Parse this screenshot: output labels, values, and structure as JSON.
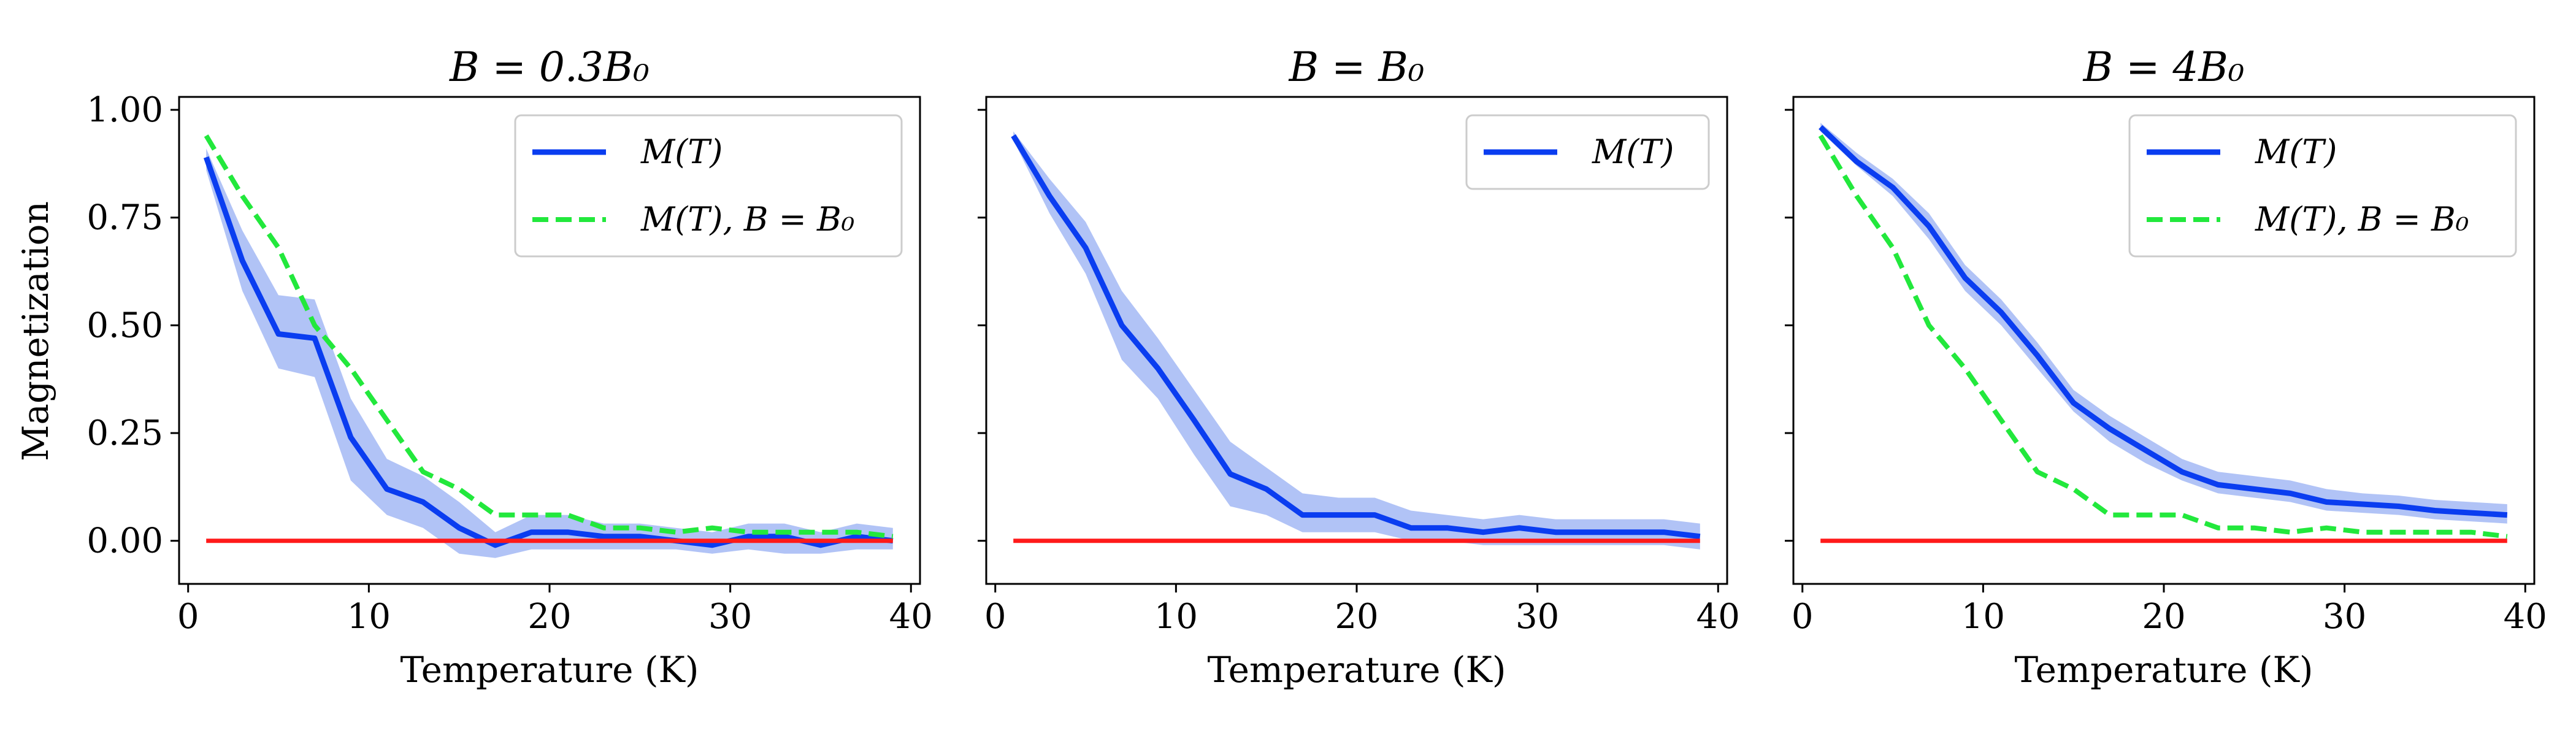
{
  "figure": {
    "ylabel": "Magnetization",
    "xlabel": "Temperature (K)"
  },
  "colors": {
    "main_line": "#0a3df0",
    "band_fill": "#a9bdf5",
    "reference_line": "#22e83c",
    "zero_line": "#ff1a1a"
  },
  "chart_data": [
    {
      "type": "line",
      "title": "B = 0.3B₀",
      "xlabel": "Temperature (K)",
      "ylabel": "Magnetization",
      "xlim": [
        -0.5,
        40.5
      ],
      "ylim": [
        -0.1,
        1.03
      ],
      "xticks": [
        0,
        10,
        20,
        30,
        40
      ],
      "yticks": [
        0.0,
        0.25,
        0.5,
        0.75,
        1.0
      ],
      "ytick_labels": [
        "0.00",
        "0.25",
        "0.50",
        "0.75",
        "1.00"
      ],
      "grid": false,
      "legend_position": "top-right",
      "x": [
        1,
        3,
        5,
        7,
        9,
        11,
        13,
        15,
        17,
        19,
        21,
        23,
        25,
        27,
        29,
        31,
        33,
        35,
        37,
        39
      ],
      "series": [
        {
          "name": "M(T)",
          "style": "solid",
          "color": "#0a3df0",
          "values": [
            0.89,
            0.65,
            0.48,
            0.47,
            0.24,
            0.12,
            0.09,
            0.03,
            -0.01,
            0.02,
            0.02,
            0.01,
            0.01,
            0.0,
            -0.01,
            0.01,
            0.01,
            -0.01,
            0.01,
            0.0
          ],
          "band_lower": [
            0.86,
            0.58,
            0.4,
            0.38,
            0.14,
            0.06,
            0.03,
            -0.03,
            -0.04,
            -0.02,
            -0.02,
            -0.02,
            -0.02,
            -0.02,
            -0.03,
            -0.02,
            -0.03,
            -0.03,
            -0.02,
            -0.02
          ],
          "band_upper": [
            0.91,
            0.72,
            0.57,
            0.56,
            0.33,
            0.19,
            0.15,
            0.09,
            0.02,
            0.06,
            0.06,
            0.04,
            0.04,
            0.03,
            0.02,
            0.04,
            0.04,
            0.02,
            0.04,
            0.03
          ]
        },
        {
          "name": "M(T), B = B₀",
          "style": "dashed",
          "color": "#22e83c",
          "values": [
            0.94,
            0.8,
            0.68,
            0.5,
            0.4,
            0.28,
            0.16,
            0.12,
            0.06,
            0.06,
            0.06,
            0.03,
            0.03,
            0.02,
            0.03,
            0.02,
            0.02,
            0.02,
            0.02,
            0.01
          ]
        },
        {
          "name": "",
          "style": "solid",
          "color": "#ff1a1a",
          "values": [
            0,
            0,
            0,
            0,
            0,
            0,
            0,
            0,
            0,
            0,
            0,
            0,
            0,
            0,
            0,
            0,
            0,
            0,
            0,
            0
          ]
        }
      ]
    },
    {
      "type": "line",
      "title": "B = B₀",
      "xlabel": "Temperature (K)",
      "ylabel": "",
      "xlim": [
        -0.5,
        40.5
      ],
      "ylim": [
        -0.1,
        1.03
      ],
      "xticks": [
        0,
        10,
        20,
        30,
        40
      ],
      "yticks": [
        0.0,
        0.25,
        0.5,
        0.75,
        1.0
      ],
      "ytick_labels": [],
      "grid": false,
      "legend_position": "top-right",
      "x": [
        1,
        3,
        5,
        7,
        9,
        11,
        13,
        15,
        17,
        19,
        21,
        23,
        25,
        27,
        29,
        31,
        33,
        35,
        37,
        39
      ],
      "series": [
        {
          "name": "M(T)",
          "style": "solid",
          "color": "#0a3df0",
          "values": [
            0.94,
            0.8,
            0.68,
            0.5,
            0.4,
            0.28,
            0.155,
            0.12,
            0.06,
            0.06,
            0.06,
            0.03,
            0.03,
            0.02,
            0.03,
            0.02,
            0.02,
            0.02,
            0.02,
            0.01
          ],
          "band_lower": [
            0.93,
            0.76,
            0.62,
            0.42,
            0.33,
            0.2,
            0.08,
            0.06,
            0.02,
            0.02,
            0.02,
            0.0,
            0.0,
            -0.01,
            -0.01,
            -0.01,
            -0.01,
            -0.01,
            -0.01,
            -0.02
          ],
          "band_upper": [
            0.95,
            0.84,
            0.74,
            0.58,
            0.47,
            0.35,
            0.23,
            0.17,
            0.11,
            0.1,
            0.1,
            0.07,
            0.06,
            0.05,
            0.06,
            0.05,
            0.05,
            0.05,
            0.05,
            0.04
          ]
        },
        {
          "name": "",
          "style": "solid",
          "color": "#ff1a1a",
          "values": [
            0,
            0,
            0,
            0,
            0,
            0,
            0,
            0,
            0,
            0,
            0,
            0,
            0,
            0,
            0,
            0,
            0,
            0,
            0,
            0
          ]
        }
      ]
    },
    {
      "type": "line",
      "title": "B = 4B₀",
      "xlabel": "Temperature (K)",
      "ylabel": "",
      "xlim": [
        -0.5,
        40.5
      ],
      "ylim": [
        -0.1,
        1.03
      ],
      "xticks": [
        0,
        10,
        20,
        30,
        40
      ],
      "yticks": [
        0.0,
        0.25,
        0.5,
        0.75,
        1.0
      ],
      "ytick_labels": [],
      "grid": false,
      "legend_position": "top-right",
      "x": [
        1,
        3,
        5,
        7,
        9,
        11,
        13,
        15,
        17,
        19,
        21,
        23,
        25,
        27,
        29,
        31,
        33,
        35,
        37,
        39
      ],
      "series": [
        {
          "name": "M(T)",
          "style": "solid",
          "color": "#0a3df0",
          "values": [
            0.96,
            0.88,
            0.82,
            0.73,
            0.61,
            0.53,
            0.43,
            0.32,
            0.26,
            0.21,
            0.16,
            0.13,
            0.12,
            0.11,
            0.09,
            0.085,
            0.08,
            0.07,
            0.065,
            0.06
          ],
          "band_lower": [
            0.95,
            0.87,
            0.8,
            0.7,
            0.58,
            0.5,
            0.4,
            0.3,
            0.23,
            0.18,
            0.14,
            0.11,
            0.1,
            0.09,
            0.07,
            0.065,
            0.06,
            0.05,
            0.045,
            0.04
          ],
          "band_upper": [
            0.97,
            0.9,
            0.84,
            0.76,
            0.64,
            0.56,
            0.46,
            0.35,
            0.29,
            0.24,
            0.19,
            0.16,
            0.15,
            0.14,
            0.12,
            0.11,
            0.105,
            0.095,
            0.09,
            0.085
          ]
        },
        {
          "name": "M(T), B = B₀",
          "style": "dashed",
          "color": "#22e83c",
          "values": [
            0.94,
            0.8,
            0.68,
            0.5,
            0.4,
            0.28,
            0.16,
            0.12,
            0.06,
            0.06,
            0.06,
            0.03,
            0.03,
            0.02,
            0.03,
            0.02,
            0.02,
            0.02,
            0.02,
            0.01
          ]
        },
        {
          "name": "",
          "style": "solid",
          "color": "#ff1a1a",
          "values": [
            0,
            0,
            0,
            0,
            0,
            0,
            0,
            0,
            0,
            0,
            0,
            0,
            0,
            0,
            0,
            0,
            0,
            0,
            0,
            0
          ]
        }
      ]
    }
  ]
}
